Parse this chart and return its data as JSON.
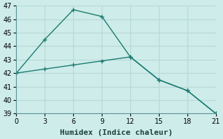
{
  "xlabel": "Humidex (Indice chaleur)",
  "background_color": "#cdecea",
  "grid_color": "#b8d8d5",
  "line_color": "#1a7a6e",
  "xlim": [
    0,
    21
  ],
  "ylim": [
    39,
    47
  ],
  "xticks": [
    0,
    3,
    6,
    9,
    12,
    15,
    18,
    21
  ],
  "yticks": [
    39,
    40,
    41,
    42,
    43,
    44,
    45,
    46,
    47
  ],
  "series1_x": [
    0,
    3,
    6,
    9,
    12,
    15,
    18,
    21
  ],
  "series1_y": [
    42.0,
    44.5,
    46.7,
    46.2,
    43.2,
    41.5,
    40.7,
    39.0
  ],
  "series2_x": [
    0,
    3,
    6,
    9,
    12,
    15,
    18,
    21
  ],
  "series2_y": [
    42.0,
    42.3,
    42.6,
    42.9,
    43.2,
    41.5,
    40.7,
    39.0
  ],
  "xlabel_fontsize": 8,
  "tick_fontsize": 7
}
